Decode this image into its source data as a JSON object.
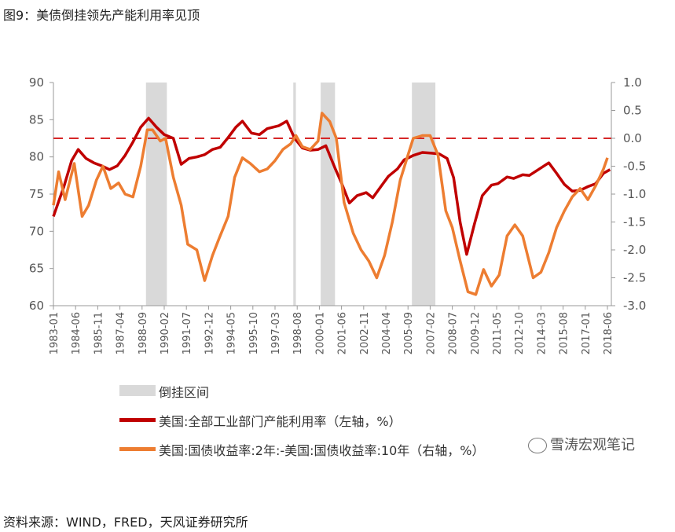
{
  "figure_title": "图9：美债倒挂领先产能利用率见顶",
  "source_note": "资料来源：WIND，FRED，天风证券研究所",
  "watermark": "雪涛宏观笔记",
  "legend": {
    "shade": "倒挂区间",
    "series1": "美国:全部工业部门产能利用率（左轴，%）",
    "series2": "美国:国债收益率:2年:-美国:国债收益率:10年（右轴，%）"
  },
  "colors": {
    "capacity": "#C00000",
    "spread": "#ED7D31",
    "shade": "#D9D9D9",
    "zero_line": "#D62728"
  },
  "chart_data": {
    "type": "line",
    "x_range": [
      "1983-01",
      "2018-09"
    ],
    "x_ticks": [
      "1983-01",
      "1984-06",
      "1985-11",
      "1987-04",
      "1988-09",
      "1990-02",
      "1991-07",
      "1992-12",
      "1994-05",
      "1995-10",
      "1997-03",
      "1998-08",
      "2000-01",
      "2001-06",
      "2002-11",
      "2004-04",
      "2005-09",
      "2007-02",
      "2008-07",
      "2009-12",
      "2011-05",
      "2012-10",
      "2014-03",
      "2015-08",
      "2017-01",
      "2018-06"
    ],
    "y_left": {
      "min": 60,
      "max": 90,
      "ticks": [
        "60",
        "65",
        "70",
        "75",
        "80",
        "85",
        "90"
      ]
    },
    "y_right": {
      "min": -3.0,
      "max": 1.0,
      "ticks": [
        "-3.0",
        "-2.5",
        "-2.0",
        "-1.5",
        "-1.0",
        "-0.5",
        "0.0",
        "0.5",
        "1.0"
      ]
    },
    "reference_line": {
      "axis": "right",
      "value": 0.0,
      "style": "dashed"
    },
    "inversion_periods": [
      [
        "1988-12",
        "1990-04"
      ],
      [
        "1998-05",
        "1998-07"
      ],
      [
        "2000-02",
        "2001-01"
      ],
      [
        "2005-12",
        "2007-06"
      ]
    ],
    "series": [
      {
        "name": "美国:全部工业部门产能利用率（左轴，%）",
        "axis": "left",
        "points": [
          [
            "1983-01",
            72.0
          ],
          [
            "1983-09",
            76.0
          ],
          [
            "1984-03",
            79.5
          ],
          [
            "1984-08",
            81.0
          ],
          [
            "1985-02",
            79.8
          ],
          [
            "1985-08",
            79.2
          ],
          [
            "1986-02",
            78.8
          ],
          [
            "1986-08",
            78.3
          ],
          [
            "1987-02",
            78.8
          ],
          [
            "1987-08",
            80.2
          ],
          [
            "1988-02",
            82.0
          ],
          [
            "1988-08",
            84.0
          ],
          [
            "1989-02",
            85.2
          ],
          [
            "1989-08",
            84.0
          ],
          [
            "1990-02",
            83.0
          ],
          [
            "1990-09",
            82.5
          ],
          [
            "1991-03",
            79.0
          ],
          [
            "1991-09",
            79.8
          ],
          [
            "1992-03",
            80.0
          ],
          [
            "1992-09",
            80.3
          ],
          [
            "1993-03",
            81.0
          ],
          [
            "1993-09",
            81.3
          ],
          [
            "1994-03",
            82.6
          ],
          [
            "1994-09",
            84.0
          ],
          [
            "1995-02",
            84.8
          ],
          [
            "1995-09",
            83.2
          ],
          [
            "1996-03",
            83.0
          ],
          [
            "1996-09",
            83.8
          ],
          [
            "1997-06",
            84.2
          ],
          [
            "1997-12",
            84.8
          ],
          [
            "1998-06",
            82.5
          ],
          [
            "1998-12",
            81.2
          ],
          [
            "1999-06",
            80.9
          ],
          [
            "1999-12",
            81.0
          ],
          [
            "2000-06",
            81.5
          ],
          [
            "2001-01",
            78.5
          ],
          [
            "2001-06",
            76.5
          ],
          [
            "2001-12",
            73.8
          ],
          [
            "2002-06",
            74.8
          ],
          [
            "2003-01",
            75.2
          ],
          [
            "2003-06",
            74.5
          ],
          [
            "2004-01",
            76.2
          ],
          [
            "2004-06",
            77.4
          ],
          [
            "2005-01",
            78.4
          ],
          [
            "2005-06",
            79.6
          ],
          [
            "2006-01",
            80.2
          ],
          [
            "2006-08",
            80.6
          ],
          [
            "2007-03",
            80.5
          ],
          [
            "2007-09",
            80.4
          ],
          [
            "2008-03",
            79.8
          ],
          [
            "2008-08",
            77.2
          ],
          [
            "2009-01",
            71.2
          ],
          [
            "2009-06",
            66.9
          ],
          [
            "2009-12",
            71.0
          ],
          [
            "2010-06",
            74.8
          ],
          [
            "2011-01",
            76.2
          ],
          [
            "2011-06",
            76.4
          ],
          [
            "2012-01",
            77.3
          ],
          [
            "2012-06",
            77.1
          ],
          [
            "2013-01",
            77.6
          ],
          [
            "2013-06",
            77.5
          ],
          [
            "2014-01",
            78.3
          ],
          [
            "2014-09",
            79.2
          ],
          [
            "2015-03",
            77.8
          ],
          [
            "2015-09",
            76.3
          ],
          [
            "2016-03",
            75.4
          ],
          [
            "2016-09",
            75.5
          ],
          [
            "2017-03",
            76.0
          ],
          [
            "2017-09",
            76.4
          ],
          [
            "2018-03",
            77.8
          ],
          [
            "2018-08",
            78.3
          ]
        ]
      },
      {
        "name": "美国:国债收益率:2年:-美国:国债收益率:10年（右轴，%）",
        "axis": "right",
        "points": [
          [
            "1983-01",
            -1.2
          ],
          [
            "1983-05",
            -0.6
          ],
          [
            "1983-10",
            -1.1
          ],
          [
            "1984-05",
            -0.45
          ],
          [
            "1984-11",
            -1.4
          ],
          [
            "1985-04",
            -1.2
          ],
          [
            "1985-10",
            -0.75
          ],
          [
            "1986-03",
            -0.5
          ],
          [
            "1986-09",
            -0.9
          ],
          [
            "1987-03",
            -0.8
          ],
          [
            "1987-08",
            -1.0
          ],
          [
            "1988-02",
            -1.05
          ],
          [
            "1988-08",
            -0.5
          ],
          [
            "1989-01",
            0.15
          ],
          [
            "1989-05",
            0.15
          ],
          [
            "1989-11",
            -0.05
          ],
          [
            "1990-03",
            0.0
          ],
          [
            "1990-09",
            -0.7
          ],
          [
            "1991-03",
            -1.2
          ],
          [
            "1991-08",
            -1.9
          ],
          [
            "1992-03",
            -2.0
          ],
          [
            "1992-09",
            -2.55
          ],
          [
            "1993-03",
            -2.1
          ],
          [
            "1993-08",
            -1.8
          ],
          [
            "1994-03",
            -1.4
          ],
          [
            "1994-08",
            -0.7
          ],
          [
            "1995-02",
            -0.35
          ],
          [
            "1995-08",
            -0.45
          ],
          [
            "1996-03",
            -0.6
          ],
          [
            "1996-09",
            -0.55
          ],
          [
            "1997-03",
            -0.4
          ],
          [
            "1997-09",
            -0.2
          ],
          [
            "1998-03",
            -0.1
          ],
          [
            "1998-07",
            0.05
          ],
          [
            "1998-12",
            -0.15
          ],
          [
            "1999-06",
            -0.2
          ],
          [
            "1999-12",
            -0.05
          ],
          [
            "2000-03",
            0.45
          ],
          [
            "2000-09",
            0.3
          ],
          [
            "2001-02",
            0.0
          ],
          [
            "2001-08",
            -1.15
          ],
          [
            "2002-03",
            -1.7
          ],
          [
            "2002-09",
            -2.0
          ],
          [
            "2003-03",
            -2.2
          ],
          [
            "2003-09",
            -2.5
          ],
          [
            "2004-03",
            -2.1
          ],
          [
            "2004-09",
            -1.5
          ],
          [
            "2005-03",
            -0.75
          ],
          [
            "2005-09",
            -0.3
          ],
          [
            "2006-01",
            0.0
          ],
          [
            "2006-08",
            0.05
          ],
          [
            "2007-02",
            0.05
          ],
          [
            "2007-08",
            -0.3
          ],
          [
            "2008-02",
            -1.3
          ],
          [
            "2008-07",
            -1.6
          ],
          [
            "2009-01",
            -2.2
          ],
          [
            "2009-07",
            -2.75
          ],
          [
            "2010-01",
            -2.8
          ],
          [
            "2010-07",
            -2.35
          ],
          [
            "2011-01",
            -2.65
          ],
          [
            "2011-07",
            -2.45
          ],
          [
            "2012-01",
            -1.75
          ],
          [
            "2012-07",
            -1.55
          ],
          [
            "2013-01",
            -1.75
          ],
          [
            "2013-09",
            -2.5
          ],
          [
            "2014-03",
            -2.4
          ],
          [
            "2014-09",
            -2.05
          ],
          [
            "2015-03",
            -1.6
          ],
          [
            "2015-09",
            -1.3
          ],
          [
            "2016-03",
            -1.05
          ],
          [
            "2016-09",
            -0.9
          ],
          [
            "2017-03",
            -1.1
          ],
          [
            "2017-09",
            -0.85
          ],
          [
            "2018-03",
            -0.55
          ],
          [
            "2018-06",
            -0.35
          ]
        ]
      }
    ]
  }
}
